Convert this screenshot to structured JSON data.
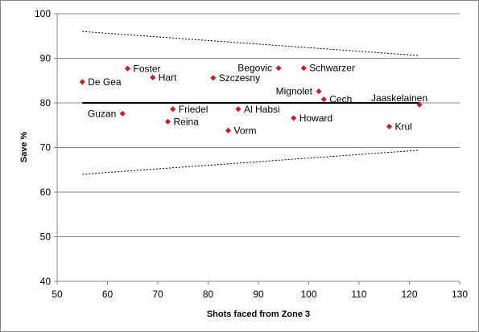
{
  "chart_data": {
    "type": "scatter",
    "title": "",
    "xlabel": "Shots faced from Zone 3",
    "ylabel": "Save %",
    "xlim": [
      50,
      130
    ],
    "ylim": [
      40,
      100
    ],
    "xticks": [
      50,
      60,
      70,
      80,
      90,
      100,
      110,
      120,
      130
    ],
    "yticks": [
      40,
      50,
      60,
      70,
      80,
      90,
      100
    ],
    "grid": "horizontal",
    "legend": "none",
    "marker_color": "#c0202a",
    "points": [
      {
        "name": "De Gea",
        "x": 55,
        "y": 84.7,
        "label_side": "right"
      },
      {
        "name": "Foster",
        "x": 64,
        "y": 87.7,
        "label_side": "right"
      },
      {
        "name": "Hart",
        "x": 69,
        "y": 85.7,
        "label_side": "right"
      },
      {
        "name": "Guzan",
        "x": 63,
        "y": 77.6,
        "label_side": "left"
      },
      {
        "name": "Friedel",
        "x": 73,
        "y": 78.6,
        "label_side": "right"
      },
      {
        "name": "Reina",
        "x": 72,
        "y": 75.8,
        "label_side": "right"
      },
      {
        "name": "Szczesny",
        "x": 81,
        "y": 85.6,
        "label_side": "right"
      },
      {
        "name": "Vorm",
        "x": 84,
        "y": 73.8,
        "label_side": "right"
      },
      {
        "name": "Al Habsi",
        "x": 86,
        "y": 78.6,
        "label_side": "right"
      },
      {
        "name": "Begovic",
        "x": 94,
        "y": 87.8,
        "label_side": "left"
      },
      {
        "name": "Schwarzer",
        "x": 99,
        "y": 87.8,
        "label_side": "right"
      },
      {
        "name": "Mignolet",
        "x": 102,
        "y": 82.6,
        "label_side": "left"
      },
      {
        "name": "Cech",
        "x": 103,
        "y": 80.8,
        "label_side": "right"
      },
      {
        "name": "Howard",
        "x": 97,
        "y": 76.6,
        "label_side": "right"
      },
      {
        "name": "Jaaskelainen",
        "x": 122,
        "y": 79.6,
        "label_side": "above-left"
      },
      {
        "name": "Krul",
        "x": 116,
        "y": 74.7,
        "label_side": "right"
      }
    ],
    "reference_line": {
      "x": [
        55,
        122
      ],
      "y": [
        80,
        80
      ],
      "style": "solid"
    },
    "upper_band": {
      "x": [
        55,
        122
      ],
      "y": [
        96,
        90.6
      ],
      "style": "dotted"
    },
    "lower_band": {
      "x": [
        55,
        122
      ],
      "y": [
        64,
        69.4
      ],
      "style": "dotted"
    }
  }
}
